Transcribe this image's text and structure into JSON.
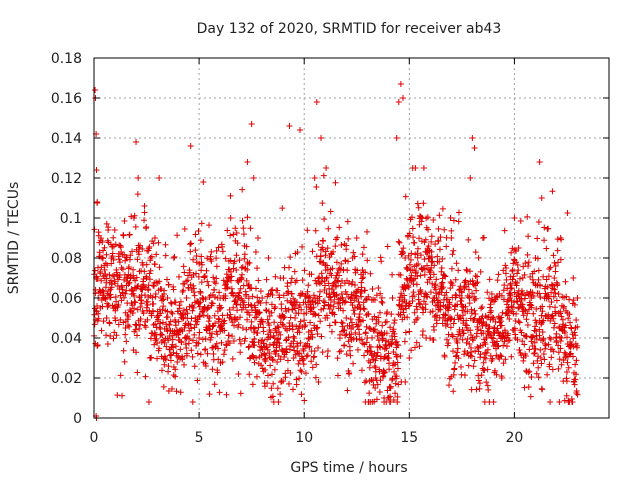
{
  "chart_data": {
    "type": "scatter",
    "title": "Day 132 of 2020, SRMTID for receiver ab43",
    "xlabel": "GPS time / hours",
    "ylabel": "SRMTID / TECUs",
    "xlim": [
      0,
      24.5
    ],
    "ylim": [
      0,
      0.18
    ],
    "x_ticks": [
      0,
      5,
      10,
      15,
      20
    ],
    "x_tick_labels": [
      "0",
      "5",
      "10",
      "15",
      "20"
    ],
    "y_ticks": [
      0,
      0.02,
      0.04,
      0.06,
      0.08,
      0.1,
      0.12,
      0.14,
      0.16,
      0.18
    ],
    "y_tick_labels": [
      "0",
      "0.02",
      "0.04",
      "0.06",
      "0.08",
      "0.1",
      "0.12",
      "0.14",
      "0.16",
      "0.18"
    ],
    "grid": true,
    "marker": "plus",
    "series_color": "#e00000",
    "data_range": {
      "x": [
        0,
        23
      ],
      "y": [
        0,
        0.167
      ]
    },
    "approx_points": 2600,
    "series": [
      {
        "name": "SRMTID",
        "x": [
          0.05,
          0.07,
          0.1,
          0.12,
          0.15,
          0.1,
          0.12,
          0.2,
          0.3,
          0.6,
          1.0,
          1.5,
          1.9,
          2.0,
          2.1,
          2.5,
          2.7,
          2.9,
          3.1,
          3.5,
          3.8,
          4.2,
          4.4,
          4.6,
          5.0,
          5.2,
          5.5,
          6.0,
          6.5,
          7.0,
          7.3,
          7.5,
          7.6,
          7.8,
          8.0,
          8.3,
          8.6,
          9.0,
          9.3,
          9.5,
          9.8,
          10.2,
          10.5,
          10.6,
          10.8,
          11.0,
          11.5,
          12.0,
          12.5,
          13.0,
          13.4,
          13.6,
          13.8,
          14.0,
          14.2,
          14.4,
          14.5,
          14.6,
          14.7,
          14.8,
          15.0,
          15.4,
          15.8,
          16.2,
          16.6,
          17.0,
          17.5,
          17.9,
          18.0,
          18.1,
          18.5,
          19.0,
          19.4,
          19.8,
          20.0,
          20.2,
          20.4,
          20.8,
          21.0,
          21.2,
          21.3,
          21.6,
          22.0,
          22.2,
          22.5,
          22.8,
          23.0
        ],
        "y": [
          0.164,
          0.16,
          0.142,
          0.124,
          0.108,
          0.001,
          0.0,
          0.06,
          0.055,
          0.05,
          0.05,
          0.045,
          0.1,
          0.138,
          0.12,
          0.07,
          0.03,
          0.09,
          0.12,
          0.06,
          0.08,
          0.03,
          0.06,
          0.136,
          0.04,
          0.118,
          0.05,
          0.06,
          0.1,
          0.07,
          0.128,
          0.147,
          0.12,
          0.09,
          0.06,
          0.08,
          0.04,
          0.05,
          0.146,
          0.03,
          0.144,
          0.06,
          0.12,
          0.158,
          0.14,
          0.05,
          0.07,
          0.05,
          0.09,
          0.04,
          0.02,
          0.013,
          0.01,
          0.03,
          0.06,
          0.14,
          0.158,
          0.167,
          0.16,
          0.08,
          0.03,
          0.05,
          0.04,
          0.06,
          0.05,
          0.09,
          0.06,
          0.12,
          0.14,
          0.135,
          0.09,
          0.05,
          0.02,
          0.06,
          0.1,
          0.085,
          0.07,
          0.06,
          0.08,
          0.128,
          0.11,
          0.05,
          0.04,
          0.09,
          0.023,
          0.07,
          0.06
        ]
      }
    ]
  }
}
